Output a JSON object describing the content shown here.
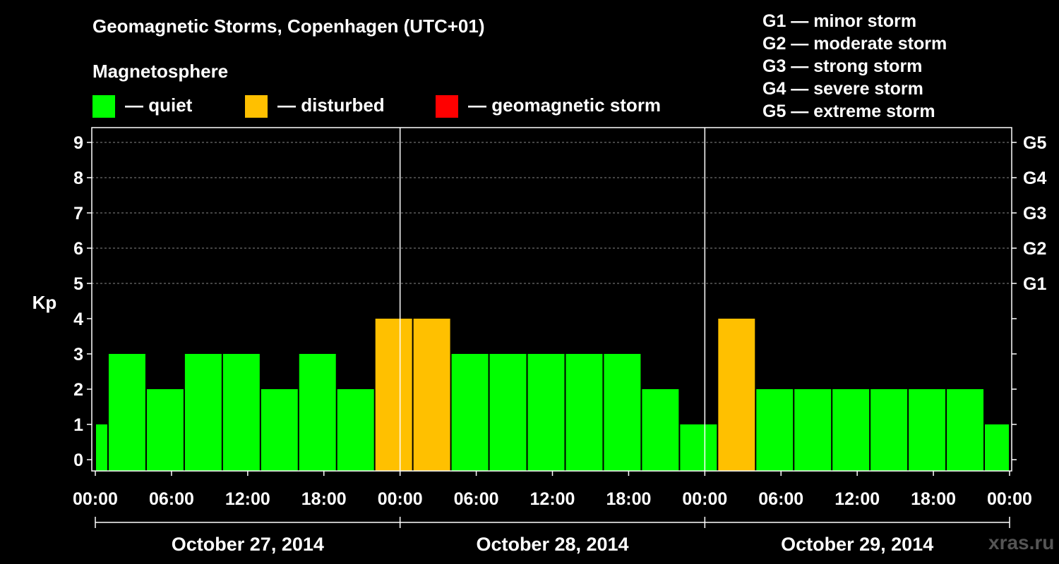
{
  "title": "Geomagnetic Storms, Copenhagen (UTC+01)",
  "subtitle": "Magnetosphere",
  "legend": [
    {
      "label": "— quiet",
      "color": "#00ff00"
    },
    {
      "label": "— disturbed",
      "color": "#ffc000"
    },
    {
      "label": "— geomagnetic storm",
      "color": "#ff0000"
    }
  ],
  "storm_scale": [
    "G1 — minor storm",
    "G2 — moderate storm",
    "G3 — strong storm",
    "G4 — severe storm",
    "G5 — extreme storm"
  ],
  "watermark": "xras.ru",
  "chart_data": {
    "type": "bar",
    "ylabel": "Kp",
    "ylim": [
      0,
      9
    ],
    "yticks": [
      0,
      1,
      2,
      3,
      4,
      5,
      6,
      7,
      8,
      9
    ],
    "right_ticks": [
      {
        "value": 5,
        "label": "G1"
      },
      {
        "value": 6,
        "label": "G2"
      },
      {
        "value": 7,
        "label": "G3"
      },
      {
        "value": 8,
        "label": "G4"
      },
      {
        "value": 9,
        "label": "G5"
      }
    ],
    "grid_lines_at": [
      5,
      6,
      7,
      8,
      9
    ],
    "x_range_hours": [
      0,
      72
    ],
    "xtick_labels": [
      "00:00",
      "06:00",
      "12:00",
      "18:00",
      "00:00",
      "06:00",
      "12:00",
      "18:00",
      "00:00",
      "06:00",
      "12:00",
      "18:00",
      "00:00"
    ],
    "days": [
      "October 27, 2014",
      "October 28, 2014",
      "October 29, 2014"
    ],
    "bars": [
      {
        "start": 0,
        "end": 1,
        "kp": 1,
        "level": "quiet"
      },
      {
        "start": 1,
        "end": 4,
        "kp": 3,
        "level": "quiet"
      },
      {
        "start": 4,
        "end": 7,
        "kp": 2,
        "level": "quiet"
      },
      {
        "start": 7,
        "end": 10,
        "kp": 3,
        "level": "quiet"
      },
      {
        "start": 10,
        "end": 13,
        "kp": 3,
        "level": "quiet"
      },
      {
        "start": 13,
        "end": 16,
        "kp": 2,
        "level": "quiet"
      },
      {
        "start": 16,
        "end": 19,
        "kp": 3,
        "level": "quiet"
      },
      {
        "start": 19,
        "end": 22,
        "kp": 2,
        "level": "quiet"
      },
      {
        "start": 22,
        "end": 25,
        "kp": 4,
        "level": "disturbed"
      },
      {
        "start": 25,
        "end": 28,
        "kp": 4,
        "level": "disturbed"
      },
      {
        "start": 28,
        "end": 31,
        "kp": 3,
        "level": "quiet"
      },
      {
        "start": 31,
        "end": 34,
        "kp": 3,
        "level": "quiet"
      },
      {
        "start": 34,
        "end": 37,
        "kp": 3,
        "level": "quiet"
      },
      {
        "start": 37,
        "end": 40,
        "kp": 3,
        "level": "quiet"
      },
      {
        "start": 40,
        "end": 43,
        "kp": 3,
        "level": "quiet"
      },
      {
        "start": 43,
        "end": 46,
        "kp": 2,
        "level": "quiet"
      },
      {
        "start": 46,
        "end": 49,
        "kp": 1,
        "level": "quiet"
      },
      {
        "start": 49,
        "end": 52,
        "kp": 4,
        "level": "disturbed"
      },
      {
        "start": 52,
        "end": 55,
        "kp": 2,
        "level": "quiet"
      },
      {
        "start": 55,
        "end": 58,
        "kp": 2,
        "level": "quiet"
      },
      {
        "start": 58,
        "end": 61,
        "kp": 2,
        "level": "quiet"
      },
      {
        "start": 61,
        "end": 64,
        "kp": 2,
        "level": "quiet"
      },
      {
        "start": 64,
        "end": 67,
        "kp": 2,
        "level": "quiet"
      },
      {
        "start": 67,
        "end": 70,
        "kp": 2,
        "level": "quiet"
      },
      {
        "start": 70,
        "end": 72,
        "kp": 1,
        "level": "quiet"
      }
    ],
    "level_colors": {
      "quiet": "#00ff00",
      "disturbed": "#ffc000",
      "storm": "#ff0000"
    }
  }
}
